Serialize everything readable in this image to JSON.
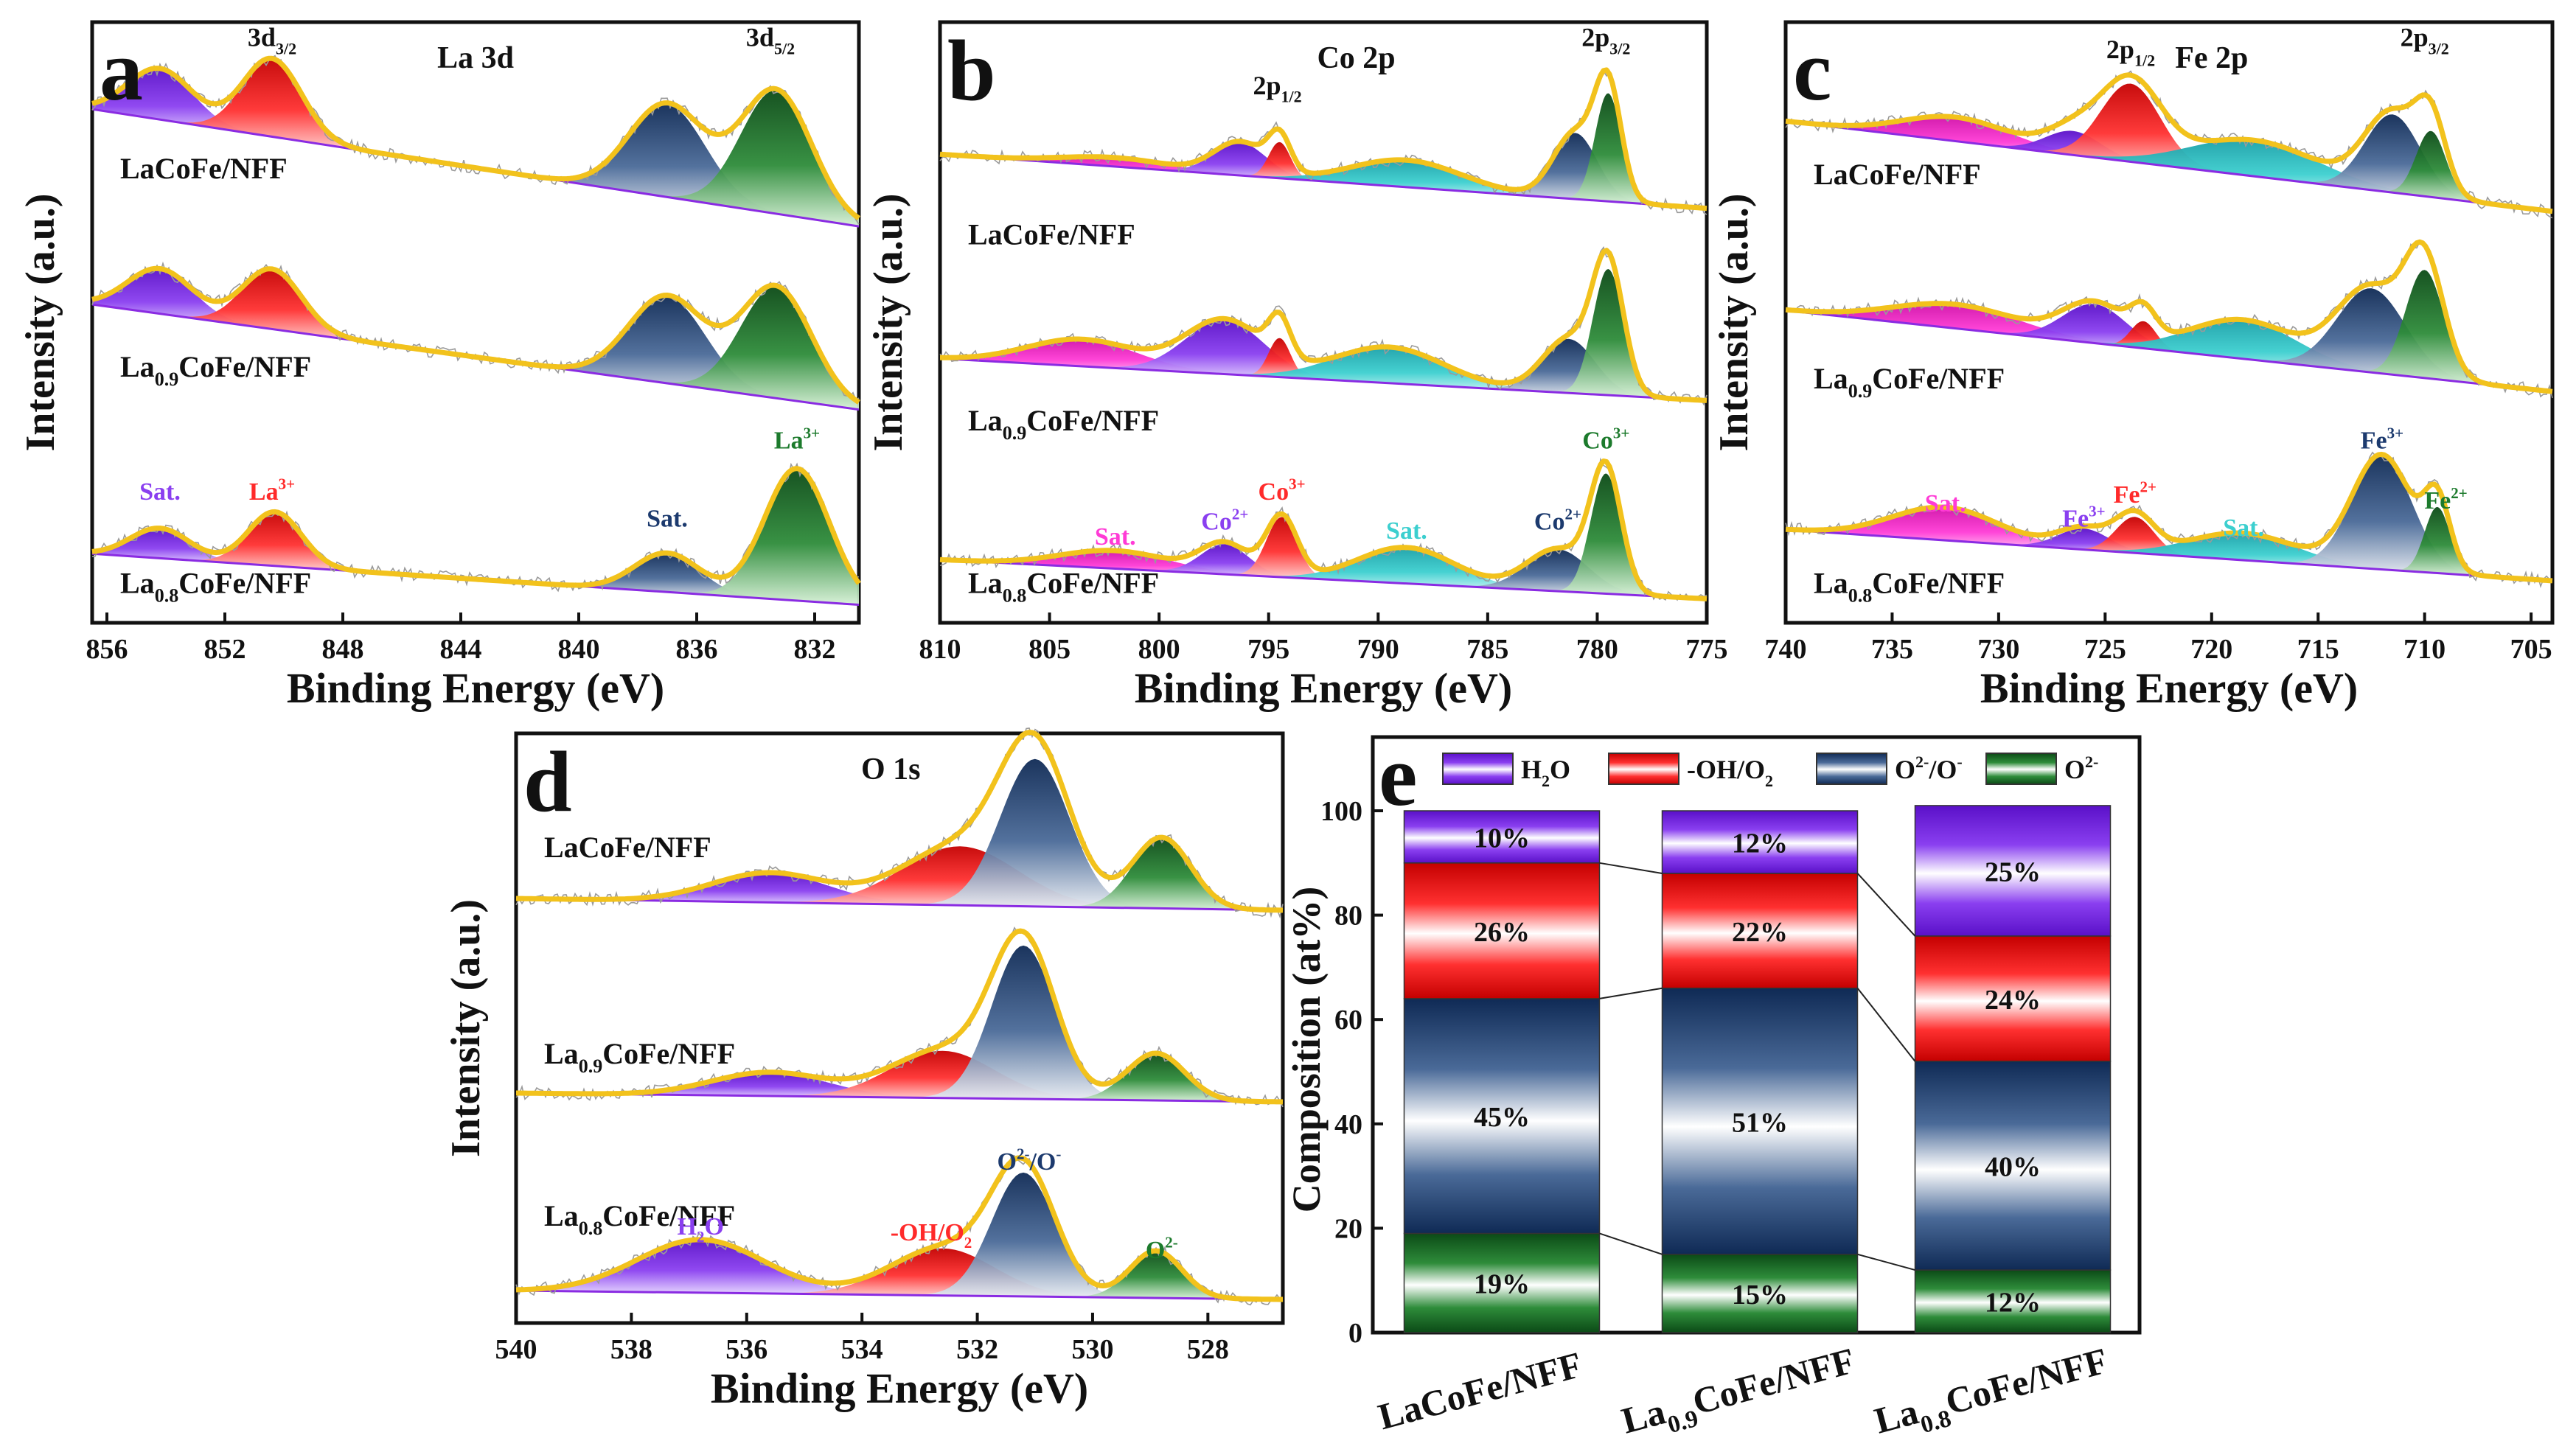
{
  "colors": {
    "envelope": "#f2c21c",
    "purple": "#8a3ff0",
    "red": "#ff2a2a",
    "navy": "#1c3a6e",
    "green": "#1c7a2c",
    "magenta": "#ff3bd6",
    "cyan": "#3ccfcf",
    "background_line": "#8a2be2",
    "noise": "#9a9a9a"
  },
  "chart_data": [
    {
      "panel": "a",
      "type": "line",
      "title": "La 3d",
      "xlabel": "Binding Energy (eV)",
      "ylabel": "Intensity (a.u.)",
      "xlim": [
        856.5,
        830.5
      ],
      "xticks": [
        "856",
        "852",
        "848",
        "844",
        "840",
        "836",
        "832"
      ],
      "xtick_values": [
        856,
        852,
        848,
        844,
        840,
        836,
        832
      ],
      "ylim": [
        0,
        10
      ],
      "peak_labels": [
        {
          "text": "3d3/2",
          "x": 850.4,
          "y": 9.6
        },
        {
          "text": "3d5/2",
          "x": 833.5,
          "y": 9.6
        }
      ],
      "annotations": [
        {
          "text": "Sat.",
          "x": 854.2,
          "y": 2.05,
          "color": "purple"
        },
        {
          "text": "La3+",
          "x": 850.4,
          "y": 2.05,
          "color": "red"
        },
        {
          "text": "Sat.",
          "x": 837.0,
          "y": 1.6,
          "color": "navy"
        },
        {
          "text": "La3+",
          "x": 832.6,
          "y": 2.9,
          "color": "green"
        }
      ],
      "series": [
        {
          "name": "LaCoFe/NFF",
          "baseline": [
            8.55,
            6.6
          ],
          "peaks": [
            {
              "x": 854.2,
              "h": 0.85,
              "w": 1.1,
              "color": "purple"
            },
            {
              "x": 850.4,
              "h": 1.3,
              "w": 1.0,
              "color": "red"
            },
            {
              "x": 837.0,
              "h": 1.55,
              "w": 1.3,
              "color": "navy"
            },
            {
              "x": 833.3,
              "h": 2.05,
              "w": 1.2,
              "color": "green"
            }
          ]
        },
        {
          "name": "La0.9CoFe/NFF",
          "baseline": [
            5.3,
            3.55
          ],
          "peaks": [
            {
              "x": 854.2,
              "h": 0.75,
              "w": 1.1,
              "color": "purple"
            },
            {
              "x": 850.4,
              "h": 1.0,
              "w": 1.0,
              "color": "red"
            },
            {
              "x": 837.0,
              "h": 1.45,
              "w": 1.3,
              "color": "navy"
            },
            {
              "x": 833.3,
              "h": 1.85,
              "w": 1.2,
              "color": "green"
            }
          ]
        },
        {
          "name": "La0.8CoFe/NFF",
          "baseline": [
            1.15,
            0.3
          ],
          "peaks": [
            {
              "x": 854.2,
              "h": 0.5,
              "w": 1.0,
              "color": "purple"
            },
            {
              "x": 850.3,
              "h": 0.9,
              "w": 0.9,
              "color": "red"
            },
            {
              "x": 837.0,
              "h": 0.65,
              "w": 1.1,
              "color": "navy"
            },
            {
              "x": 832.6,
              "h": 2.2,
              "w": 1.1,
              "color": "green"
            }
          ]
        }
      ],
      "sample_labels": [
        {
          "base": "LaCoFe/NFF",
          "sub": "",
          "rest": "",
          "y": 7.4
        },
        {
          "base": "La",
          "sub": "0.9",
          "rest": "CoFe/NFF",
          "y": 4.1
        },
        {
          "base": "La",
          "sub": "0.8",
          "rest": "CoFe/NFF",
          "y": 0.5
        }
      ],
      "panel_letter": "a"
    },
    {
      "panel": "b",
      "type": "line",
      "title": "Co 2p",
      "xlabel": "Binding Energy (eV)",
      "ylabel": "Intensity (a.u.)",
      "xlim": [
        810,
        775
      ],
      "xticks": [
        "810",
        "805",
        "800",
        "795",
        "790",
        "785",
        "780",
        "775"
      ],
      "xtick_values": [
        810,
        805,
        800,
        795,
        790,
        785,
        780,
        775
      ],
      "ylim": [
        0,
        10
      ],
      "peak_labels": [
        {
          "text": "2p1/2",
          "x": 794.6,
          "y": 8.8
        },
        {
          "text": "2p3/2",
          "x": 779.6,
          "y": 9.6
        }
      ],
      "annotations": [
        {
          "text": "Sat.",
          "x": 802.0,
          "y": 1.3,
          "color": "magenta"
        },
        {
          "text": "Co2+",
          "x": 797.0,
          "y": 1.55,
          "color": "purple"
        },
        {
          "text": "Co3+",
          "x": 794.4,
          "y": 2.05,
          "color": "red"
        },
        {
          "text": "Sat.",
          "x": 788.7,
          "y": 1.4,
          "color": "cyan"
        },
        {
          "text": "Co2+",
          "x": 781.8,
          "y": 1.55,
          "color": "navy"
        },
        {
          "text": "Co3+",
          "x": 779.6,
          "y": 2.9,
          "color": "green"
        }
      ],
      "series": [
        {
          "name": "LaCoFe/NFF",
          "baseline": [
            7.8,
            6.9
          ],
          "peaks": [
            {
              "x": 802.0,
              "h": 0.15,
              "w": 2.5,
              "color": "magenta"
            },
            {
              "x": 796.3,
              "h": 0.55,
              "w": 1.2,
              "color": "purple"
            },
            {
              "x": 794.5,
              "h": 0.6,
              "w": 0.5,
              "color": "red"
            },
            {
              "x": 788.7,
              "h": 0.45,
              "w": 2.5,
              "color": "cyan"
            },
            {
              "x": 781.0,
              "h": 1.1,
              "w": 1.0,
              "color": "navy"
            },
            {
              "x": 779.5,
              "h": 1.8,
              "w": 0.6,
              "color": "green"
            }
          ]
        },
        {
          "name": "La0.9CoFe/NFF",
          "baseline": [
            4.4,
            3.7
          ],
          "peaks": [
            {
              "x": 803.5,
              "h": 0.45,
              "w": 2.5,
              "color": "magenta"
            },
            {
              "x": 797.0,
              "h": 0.9,
              "w": 1.8,
              "color": "purple"
            },
            {
              "x": 794.5,
              "h": 0.65,
              "w": 0.5,
              "color": "red"
            },
            {
              "x": 789.5,
              "h": 0.6,
              "w": 2.5,
              "color": "cyan"
            },
            {
              "x": 781.3,
              "h": 0.9,
              "w": 1.2,
              "color": "navy"
            },
            {
              "x": 779.5,
              "h": 2.1,
              "w": 0.7,
              "color": "green"
            }
          ]
        },
        {
          "name": "La0.8CoFe/NFF",
          "baseline": [
            1.05,
            0.4
          ],
          "peaks": [
            {
              "x": 802.0,
              "h": 0.3,
              "w": 2.5,
              "color": "magenta"
            },
            {
              "x": 797.0,
              "h": 0.5,
              "w": 1.1,
              "color": "purple"
            },
            {
              "x": 794.4,
              "h": 1.0,
              "w": 0.7,
              "color": "red"
            },
            {
              "x": 788.7,
              "h": 0.6,
              "w": 2.2,
              "color": "cyan"
            },
            {
              "x": 781.8,
              "h": 0.7,
              "w": 1.4,
              "color": "navy"
            },
            {
              "x": 779.6,
              "h": 2.0,
              "w": 0.7,
              "color": "green"
            }
          ]
        }
      ],
      "sample_labels": [
        {
          "base": "LaCoFe/NFF",
          "sub": "",
          "rest": "",
          "y": 6.3
        },
        {
          "base": "La",
          "sub": "0.9",
          "rest": "CoFe/NFF",
          "y": 3.2
        },
        {
          "base": "La",
          "sub": "0.8",
          "rest": "CoFe/NFF",
          "y": 0.5
        }
      ],
      "panel_letter": "b"
    },
    {
      "panel": "c",
      "type": "line",
      "title": "Fe 2p",
      "xlabel": "Binding Energy (eV)",
      "ylabel": "Intensity (a.u.)",
      "xlim": [
        740,
        704
      ],
      "xticks": [
        "740",
        "735",
        "730",
        "725",
        "720",
        "715",
        "710",
        "705"
      ],
      "xtick_values": [
        740,
        735,
        730,
        725,
        720,
        715,
        710,
        705
      ],
      "ylim": [
        0,
        10
      ],
      "peak_labels": [
        {
          "text": "2p1/2",
          "x": 723.8,
          "y": 9.4
        },
        {
          "text": "2p3/2",
          "x": 710.0,
          "y": 9.6
        }
      ],
      "annotations": [
        {
          "text": "Sat.",
          "x": 732.5,
          "y": 1.85,
          "color": "magenta"
        },
        {
          "text": "Fe3+",
          "x": 726.0,
          "y": 1.6,
          "color": "purple"
        },
        {
          "text": "Fe2+",
          "x": 723.6,
          "y": 2.0,
          "color": "red"
        },
        {
          "text": "Sat.",
          "x": 718.5,
          "y": 1.45,
          "color": "cyan"
        },
        {
          "text": "Fe3+",
          "x": 712.0,
          "y": 2.9,
          "color": "navy"
        },
        {
          "text": "Fe2+",
          "x": 709.0,
          "y": 1.9,
          "color": "green"
        }
      ],
      "series": [
        {
          "name": "LaCoFe/NFF",
          "baseline": [
            8.35,
            6.85
          ],
          "peaks": [
            {
              "x": 732.0,
              "h": 0.4,
              "w": 2.5,
              "color": "magenta"
            },
            {
              "x": 726.5,
              "h": 0.4,
              "w": 1.3,
              "color": "purple"
            },
            {
              "x": 723.8,
              "h": 1.3,
              "w": 1.4,
              "color": "red"
            },
            {
              "x": 718.0,
              "h": 0.6,
              "w": 3.0,
              "color": "cyan"
            },
            {
              "x": 711.5,
              "h": 1.3,
              "w": 1.3,
              "color": "navy"
            },
            {
              "x": 709.7,
              "h": 1.1,
              "w": 0.7,
              "color": "green"
            }
          ]
        },
        {
          "name": "La0.9CoFe/NFF",
          "baseline": [
            5.2,
            3.85
          ],
          "peaks": [
            {
              "x": 732.0,
              "h": 0.4,
              "w": 3.0,
              "color": "magenta"
            },
            {
              "x": 725.5,
              "h": 0.65,
              "w": 1.5,
              "color": "purple"
            },
            {
              "x": 723.2,
              "h": 0.45,
              "w": 0.6,
              "color": "red"
            },
            {
              "x": 718.5,
              "h": 0.65,
              "w": 2.5,
              "color": "cyan"
            },
            {
              "x": 712.5,
              "h": 1.4,
              "w": 1.6,
              "color": "navy"
            },
            {
              "x": 710.0,
              "h": 1.8,
              "w": 0.9,
              "color": "green"
            }
          ]
        },
        {
          "name": "La0.8CoFe/NFF",
          "baseline": [
            1.55,
            0.7
          ],
          "peaks": [
            {
              "x": 732.5,
              "h": 0.55,
              "w": 2.5,
              "color": "magenta"
            },
            {
              "x": 726.0,
              "h": 0.35,
              "w": 1.2,
              "color": "purple"
            },
            {
              "x": 723.6,
              "h": 0.6,
              "w": 0.9,
              "color": "red"
            },
            {
              "x": 718.5,
              "h": 0.45,
              "w": 2.5,
              "color": "cyan"
            },
            {
              "x": 712.0,
              "h": 1.9,
              "w": 1.4,
              "color": "navy"
            },
            {
              "x": 709.4,
              "h": 1.1,
              "w": 0.6,
              "color": "green"
            }
          ]
        }
      ],
      "sample_labels": [
        {
          "base": "LaCoFe/NFF",
          "sub": "",
          "rest": "",
          "y": 7.3
        },
        {
          "base": "La",
          "sub": "0.9",
          "rest": "CoFe/NFF",
          "y": 3.9
        },
        {
          "base": "La",
          "sub": "0.8",
          "rest": "CoFe/NFF",
          "y": 0.5
        }
      ],
      "panel_letter": "c"
    },
    {
      "panel": "d",
      "type": "line",
      "title": "O 1s",
      "xlabel": "Binding Energy (eV)",
      "ylabel": "Intensity (a.u.)",
      "xlim": [
        540,
        526.7
      ],
      "xticks": [
        "540",
        "538",
        "536",
        "534",
        "532",
        "530",
        "528"
      ],
      "xtick_values": [
        540,
        538,
        536,
        534,
        532,
        530,
        528
      ],
      "ylim": [
        0,
        10
      ],
      "peak_labels": [],
      "annotations": [
        {
          "text": "H2O",
          "x": 536.8,
          "y": 1.5,
          "color": "purple"
        },
        {
          "text": "-OH/O2",
          "x": 532.8,
          "y": 1.4,
          "color": "red"
        },
        {
          "text": "O2-/O-",
          "x": 531.1,
          "y": 2.6,
          "color": "navy"
        },
        {
          "text": "O2-",
          "x": 528.8,
          "y": 1.1,
          "color": "green"
        }
      ],
      "series": [
        {
          "name": "LaCoFe/NFF",
          "baseline": [
            7.2,
            7.0
          ],
          "peaks": [
            {
              "x": 535.6,
              "h": 0.5,
              "w": 1.0,
              "color": "purple"
            },
            {
              "x": 532.3,
              "h": 1.0,
              "w": 1.0,
              "color": "red"
            },
            {
              "x": 531.0,
              "h": 2.5,
              "w": 0.6,
              "color": "navy"
            },
            {
              "x": 528.8,
              "h": 1.2,
              "w": 0.5,
              "color": "green"
            }
          ]
        },
        {
          "name": "La0.9CoFe/NFF",
          "baseline": [
            3.9,
            3.75
          ],
          "peaks": [
            {
              "x": 535.6,
              "h": 0.4,
              "w": 1.0,
              "color": "purple"
            },
            {
              "x": 532.6,
              "h": 0.8,
              "w": 0.9,
              "color": "red"
            },
            {
              "x": 531.2,
              "h": 2.6,
              "w": 0.55,
              "color": "navy"
            },
            {
              "x": 528.9,
              "h": 0.8,
              "w": 0.5,
              "color": "green"
            }
          ]
        },
        {
          "name": "La0.8CoFe/NFF",
          "baseline": [
            0.55,
            0.4
          ],
          "peaks": [
            {
              "x": 536.8,
              "h": 0.9,
              "w": 1.1,
              "color": "purple"
            },
            {
              "x": 532.6,
              "h": 0.8,
              "w": 0.9,
              "color": "red"
            },
            {
              "x": 531.2,
              "h": 2.1,
              "w": 0.55,
              "color": "navy"
            },
            {
              "x": 528.9,
              "h": 0.8,
              "w": 0.45,
              "color": "green"
            }
          ]
        }
      ],
      "sample_labels": [
        {
          "base": "LaCoFe/NFF",
          "sub": "",
          "rest": "",
          "y": 7.9
        },
        {
          "base": "La",
          "sub": "0.9",
          "rest": "CoFe/NFF",
          "y": 4.4
        },
        {
          "base": "La",
          "sub": "0.8",
          "rest": "CoFe/NFF",
          "y": 1.65
        }
      ],
      "panel_letter": "d"
    },
    {
      "panel": "e",
      "type": "bar",
      "stacked": true,
      "xlabel": "",
      "ylabel": "Composition (at%)",
      "ylim": [
        0,
        100
      ],
      "yticks": [
        "0",
        "20",
        "40",
        "60",
        "80",
        "100"
      ],
      "ytick_values": [
        0,
        20,
        40,
        60,
        80,
        100
      ],
      "categories": [
        {
          "base": "LaCoFe/NFF",
          "sub": "",
          "rest": ""
        },
        {
          "base": "La",
          "sub": "0.9",
          "rest": "CoFe/NFF"
        },
        {
          "base": "La",
          "sub": "0.8",
          "rest": "CoFe/NFF"
        }
      ],
      "legend": [
        {
          "text": "H2O",
          "color": "purple"
        },
        {
          "text": "-OH/O2",
          "color": "red"
        },
        {
          "text": "O2-/O-",
          "color": "navy"
        },
        {
          "text": "O2-",
          "color": "green"
        }
      ],
      "series": [
        {
          "name": "O2-",
          "color": "green",
          "values": [
            19,
            15,
            12
          ],
          "labels": [
            "19%",
            "15%",
            "12%"
          ]
        },
        {
          "name": "O2-/O-",
          "color": "navy",
          "values": [
            45,
            51,
            40
          ],
          "labels": [
            "45%",
            "51%",
            "40%"
          ]
        },
        {
          "name": "-OH/O2",
          "color": "red",
          "values": [
            26,
            22,
            24
          ],
          "labels": [
            "26%",
            "22%",
            "24%"
          ]
        },
        {
          "name": "H2O",
          "color": "purple",
          "values": [
            10,
            12,
            25
          ],
          "labels": [
            "10%",
            "12%",
            "25%"
          ]
        }
      ],
      "panel_letter": "e"
    }
  ]
}
